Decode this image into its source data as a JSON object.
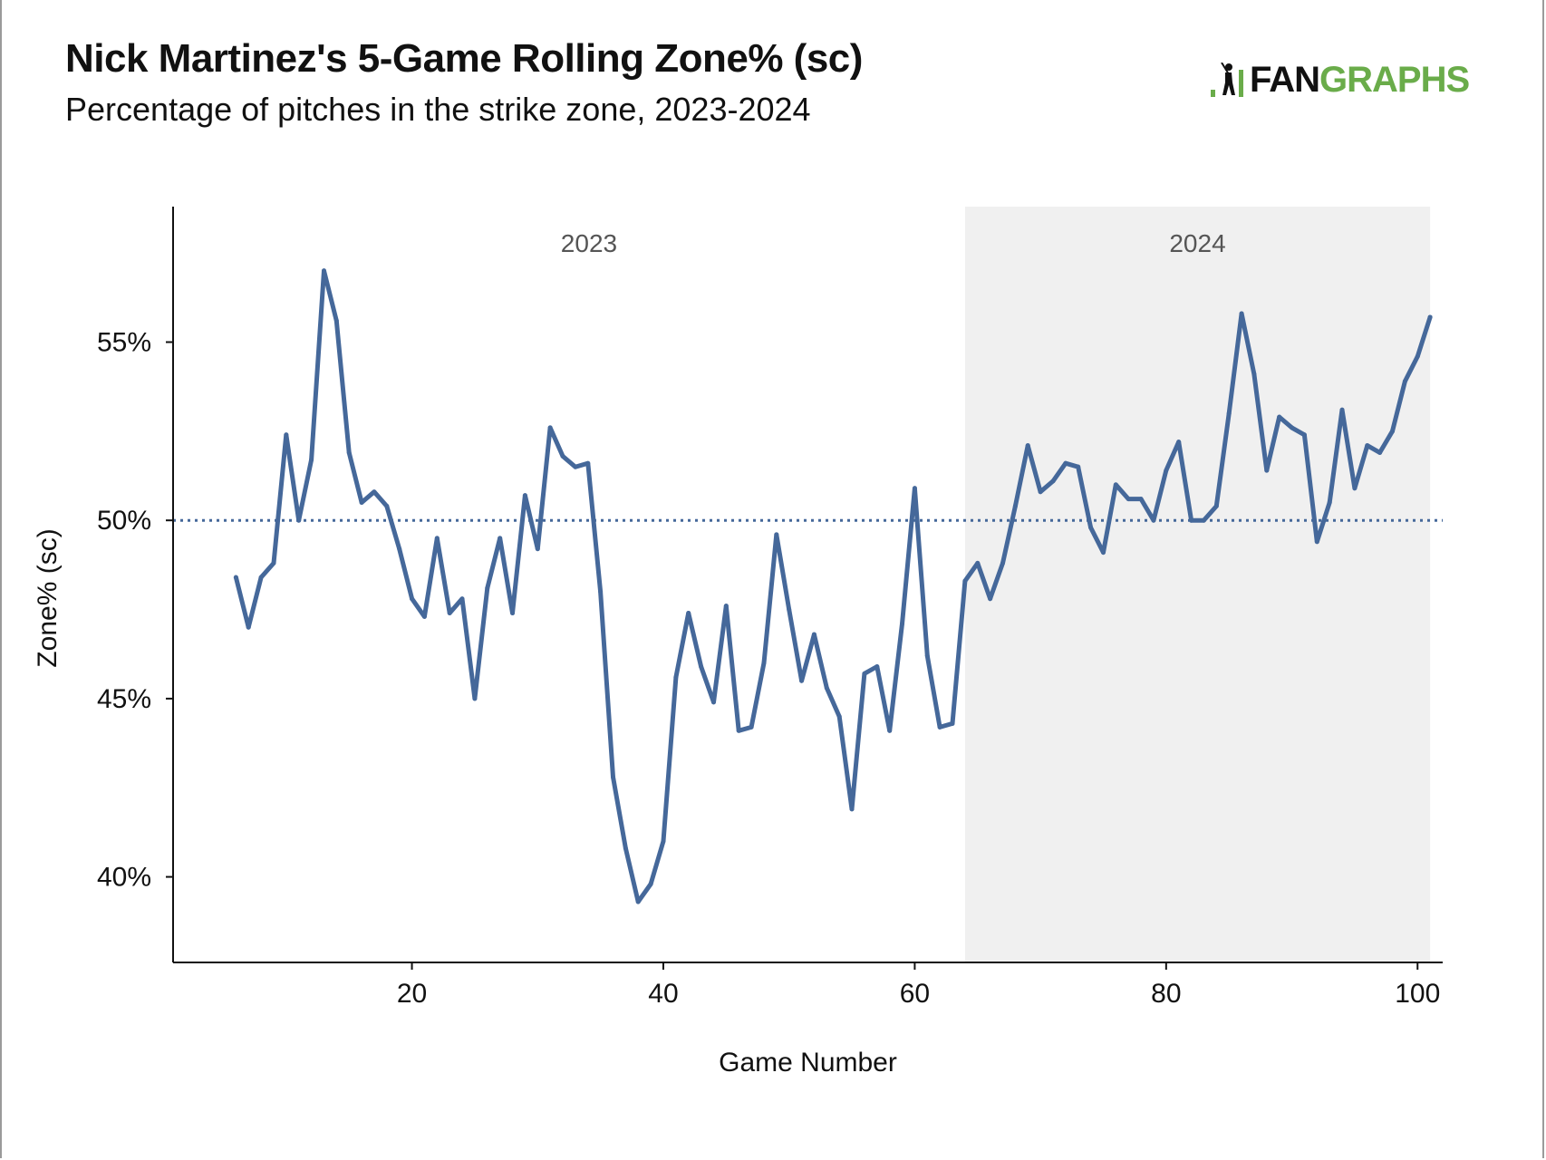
{
  "header": {
    "title": "Nick Martinez's 5-Game Rolling Zone% (sc)",
    "subtitle": "Percentage of pitches in the strike zone, 2023-2024"
  },
  "logo": {
    "part1": "FAN",
    "part2": "GRAPHS",
    "icon": "batter-icon"
  },
  "colors": {
    "line": "#45689a",
    "reference": "#45689a",
    "shade": "#f0f0f0",
    "logo_green": "#6aac4a"
  },
  "chart_data": {
    "type": "line",
    "title": "Nick Martinez's 5-Game Rolling Zone% (sc)",
    "subtitle": "Percentage of pitches in the strike zone, 2023-2024",
    "xlabel": "Game Number",
    "ylabel": "Zone% (sc)",
    "xlim": [
      1,
      102
    ],
    "ylim": [
      37.6,
      58.8
    ],
    "x_ticks": [
      20,
      40,
      60,
      80,
      100
    ],
    "x_tick_labels": [
      "20",
      "40",
      "60",
      "80",
      "100"
    ],
    "y_ticks": [
      40,
      45,
      50,
      55
    ],
    "y_tick_labels": [
      "40%",
      "45%",
      "50%",
      "55%"
    ],
    "reference_line": {
      "y": 50,
      "style": "dotted"
    },
    "regions": [
      {
        "label": "2023",
        "x_start": 1,
        "x_end": 64,
        "shaded": false
      },
      {
        "label": "2024",
        "x_start": 64,
        "x_end": 101,
        "shaded": true
      }
    ],
    "grid": false,
    "legend": "none",
    "series": [
      {
        "x": [
          6,
          7,
          8,
          9,
          10,
          11,
          12,
          13,
          14,
          15,
          16,
          17,
          18,
          19,
          20,
          21,
          22,
          23,
          24,
          25,
          26,
          27,
          28,
          29,
          30,
          31,
          32,
          33,
          34,
          35,
          36,
          37,
          38,
          39,
          40,
          41,
          42,
          43,
          44,
          45,
          46,
          47,
          48,
          49,
          50,
          51,
          52,
          53,
          54,
          55,
          56,
          57,
          58,
          59,
          60,
          61,
          62,
          63,
          64,
          65,
          66,
          67,
          68,
          69,
          70,
          71,
          72,
          73,
          74,
          75,
          76,
          77,
          78,
          79,
          80,
          81,
          82,
          83,
          84,
          85,
          86,
          87,
          88,
          89,
          90,
          91,
          92,
          93,
          94,
          95,
          96,
          97,
          98,
          99,
          100,
          101
        ],
        "y": [
          48.4,
          47.0,
          48.4,
          48.8,
          52.4,
          50.0,
          51.7,
          57.0,
          55.6,
          51.9,
          50.5,
          50.8,
          50.4,
          49.2,
          47.8,
          47.3,
          49.5,
          47.4,
          47.8,
          45.0,
          48.1,
          49.5,
          47.4,
          50.7,
          49.2,
          52.6,
          51.8,
          51.5,
          51.6,
          48.0,
          42.8,
          40.8,
          39.3,
          39.8,
          41.0,
          45.6,
          47.4,
          45.9,
          44.9,
          47.6,
          44.1,
          44.2,
          46.0,
          49.6,
          47.5,
          45.5,
          46.8,
          45.3,
          44.5,
          41.9,
          45.7,
          45.9,
          44.1,
          47.1,
          50.9,
          46.2,
          44.2,
          44.3,
          48.3,
          48.8,
          47.8,
          48.8,
          50.4,
          52.1,
          50.8,
          51.1,
          51.6,
          51.5,
          49.8,
          49.1,
          51.0,
          50.6,
          50.6,
          50.0,
          51.4,
          52.2,
          50.0,
          50.0,
          50.4,
          53.0,
          55.8,
          54.1,
          51.4,
          52.9,
          52.6,
          52.4,
          49.4,
          50.5,
          53.1,
          50.9,
          52.1,
          51.9,
          52.5,
          53.9,
          54.6,
          55.7
        ]
      }
    ]
  }
}
